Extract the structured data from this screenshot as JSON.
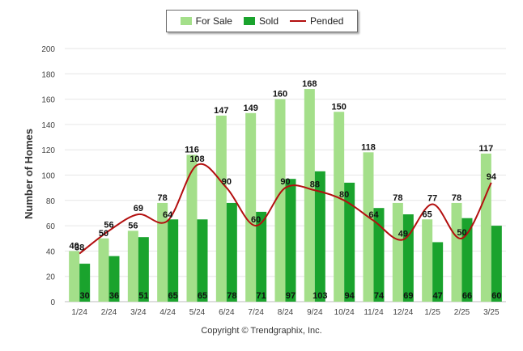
{
  "chart_data": {
    "type": "bar",
    "ylabel": "Number of Homes",
    "ylim": [
      0,
      200
    ],
    "yticks": [
      0,
      20,
      40,
      60,
      80,
      100,
      120,
      140,
      160,
      180,
      200
    ],
    "categories": [
      "1/24",
      "2/24",
      "3/24",
      "4/24",
      "5/24",
      "6/24",
      "7/24",
      "8/24",
      "9/24",
      "10/24",
      "11/24",
      "12/24",
      "1/25",
      "2/25",
      "3/25"
    ],
    "series": [
      {
        "name": "For Sale",
        "kind": "bar",
        "color": "#a4df8a",
        "values": [
          40,
          50,
          56,
          78,
          116,
          147,
          149,
          160,
          168,
          150,
          118,
          78,
          65,
          78,
          117
        ]
      },
      {
        "name": "Sold",
        "kind": "bar",
        "color": "#1aa32d",
        "values": [
          30,
          36,
          51,
          65,
          65,
          78,
          71,
          97,
          103,
          94,
          74,
          69,
          47,
          66,
          60
        ]
      },
      {
        "name": "Pended",
        "kind": "line",
        "color": "#b30f0f",
        "values": [
          38,
          56,
          69,
          64,
          108,
          90,
          60,
          90,
          88,
          80,
          64,
          49,
          77,
          50,
          94
        ]
      }
    ],
    "grid": true,
    "legend_position": "top"
  },
  "copyright": "Copyright © Trendgraphix, Inc."
}
